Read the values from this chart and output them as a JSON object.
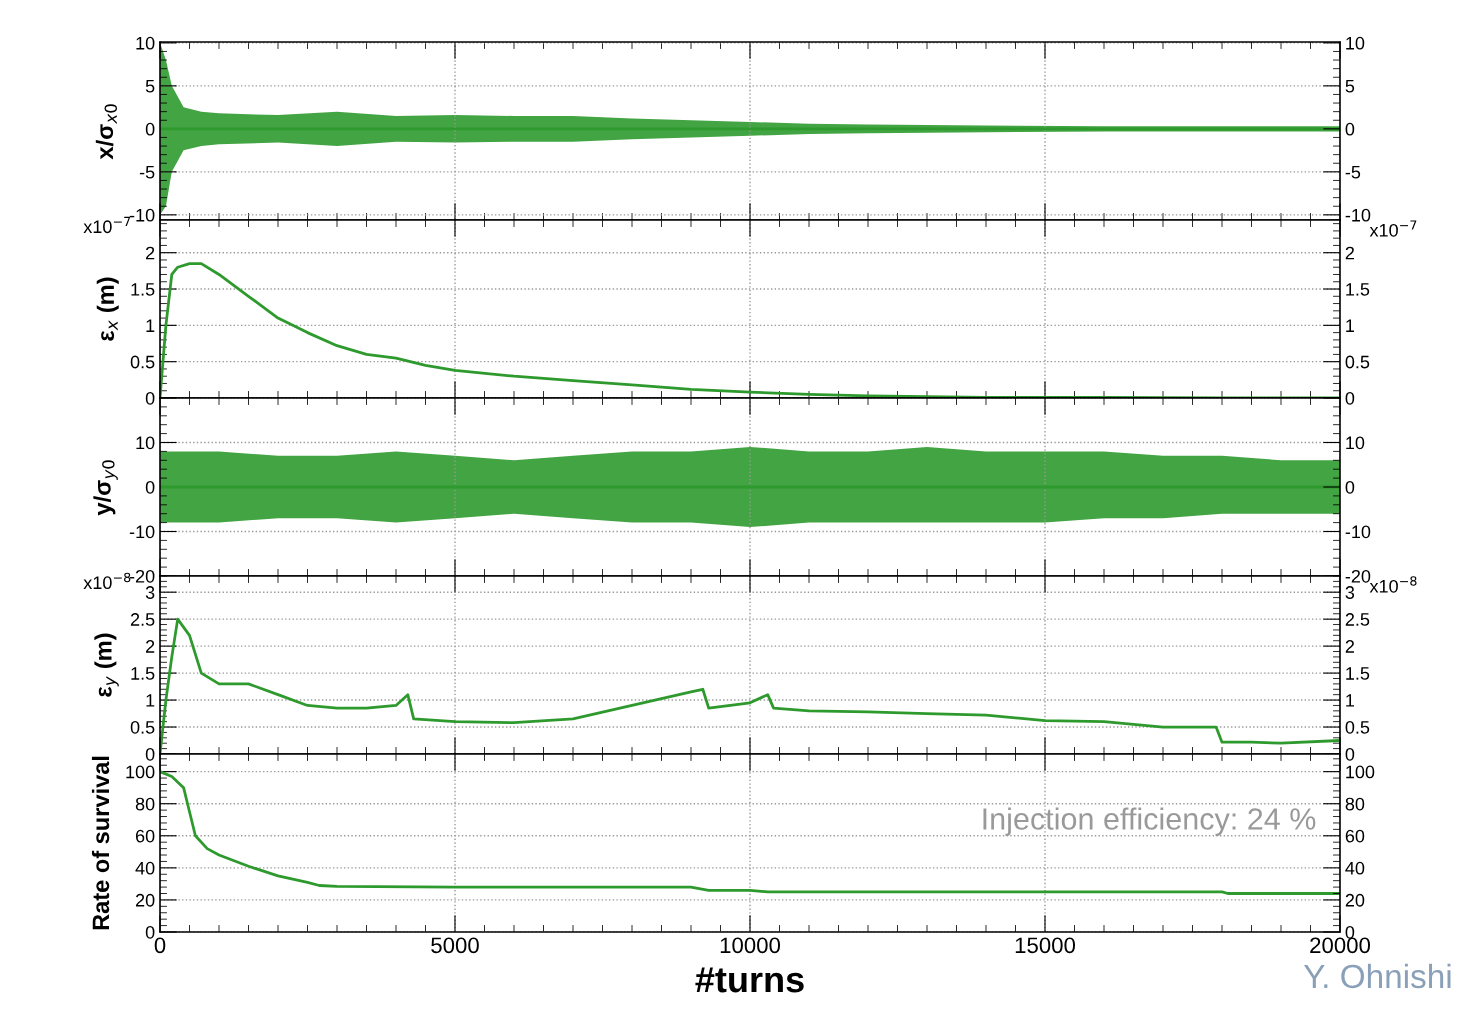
{
  "chart_data": [
    {
      "type": "line",
      "ylabel": "x/σ$_{x0}$",
      "xlim": [
        0,
        20000
      ],
      "xticks": [
        0,
        5000,
        10000,
        15000,
        20000
      ],
      "ylim": [
        -10.6,
        10.1
      ],
      "yticks": [
        -10,
        -5,
        0,
        5,
        10
      ],
      "y2lim": [
        -10.6,
        10.1
      ],
      "y2ticks": [
        -10,
        -5,
        0,
        5,
        10
      ],
      "grid": true,
      "tick_labels": "y",
      "x": [
        0,
        100,
        200,
        400,
        700,
        1000,
        2000,
        3000,
        4000,
        5000,
        6000,
        7000,
        8000,
        9000,
        10000,
        11000,
        12000,
        14000,
        16000,
        18000,
        20000
      ],
      "series": [
        {
          "color": "#2e9a2e",
          "values": [
            0,
            0,
            0,
            0,
            0,
            0,
            0,
            0,
            0,
            0,
            0,
            0,
            0,
            0,
            0,
            0,
            0,
            0,
            0,
            0,
            0
          ],
          "upper": [
            10,
            8,
            5,
            2.5,
            2,
            1.8,
            1.6,
            2,
            1.5,
            1.6,
            1.5,
            1.5,
            1.2,
            1,
            0.8,
            0.6,
            0.5,
            0.4,
            0.3,
            0.3,
            0.3
          ],
          "lower": [
            -10,
            -9,
            -5,
            -2.5,
            -2,
            -1.8,
            -1.6,
            -2,
            -1.5,
            -1.6,
            -1.5,
            -1.5,
            -1.2,
            -1,
            -0.8,
            -0.6,
            -0.5,
            -0.4,
            -0.3,
            -0.3,
            -0.3
          ]
        }
      ]
    },
    {
      "type": "line",
      "ylabel": "ε$_{x}$ (m)",
      "annotations": [
        "x10$^{−7}$",
        "x10$^{−7}$"
      ],
      "xlim": [
        0,
        20000
      ],
      "xticks": [
        0,
        5000,
        10000,
        15000,
        20000
      ],
      "ylim": [
        0,
        2.45
      ],
      "yticks": [
        0,
        0.5,
        1,
        1.5,
        2
      ],
      "y2lim": [
        0,
        2.45
      ],
      "y2ticks": [
        0,
        0.5,
        1,
        1.5,
        2
      ],
      "grid": true,
      "tick_labels": "y",
      "x": [
        0,
        100,
        200,
        300,
        500,
        700,
        1000,
        1500,
        2000,
        2500,
        3000,
        3500,
        4000,
        4500,
        5000,
        6000,
        7000,
        8000,
        9000,
        10000,
        11000,
        12000,
        14000,
        16000,
        18000,
        20000
      ],
      "series": [
        {
          "color": "#2e9a2e",
          "values": [
            0,
            1.0,
            1.7,
            1.8,
            1.85,
            1.85,
            1.7,
            1.4,
            1.1,
            0.9,
            0.72,
            0.6,
            0.55,
            0.45,
            0.38,
            0.3,
            0.24,
            0.18,
            0.12,
            0.08,
            0.05,
            0.03,
            0.01,
            0.01,
            0,
            0
          ]
        }
      ]
    },
    {
      "type": "line",
      "ylabel": "y/σ$_{y0}$",
      "xlim": [
        0,
        20000
      ],
      "xticks": [
        0,
        5000,
        10000,
        15000,
        20000
      ],
      "ylim": [
        -20,
        20
      ],
      "yticks": [
        -20,
        -10,
        0,
        10,
        {
          "value": 20,
          "label": null
        }
      ],
      "y2lim": [
        -20,
        20
      ],
      "y2ticks": [
        -20,
        -10,
        0,
        10,
        {
          "value": 20,
          "label": null
        }
      ],
      "grid": true,
      "tick_labels": "y",
      "x": [
        0,
        1000,
        2000,
        3000,
        4000,
        5000,
        6000,
        7000,
        8000,
        9000,
        10000,
        11000,
        12000,
        13000,
        14000,
        15000,
        16000,
        17000,
        18000,
        19000,
        20000
      ],
      "series": [
        {
          "color": "#2e9a2e",
          "values": [
            0,
            0,
            0,
            0,
            0,
            0,
            0,
            0,
            0,
            0,
            0,
            0,
            0,
            0,
            0,
            0,
            0,
            0,
            0,
            0,
            0
          ],
          "upper": [
            8,
            8,
            7,
            7,
            8,
            7,
            6,
            7,
            8,
            8,
            9,
            8,
            8,
            9,
            8,
            8,
            8,
            7,
            7,
            6,
            6
          ],
          "lower": [
            -8,
            -8,
            -7,
            -7,
            -8,
            -7,
            -6,
            -7,
            -8,
            -8,
            -9,
            -8,
            -8,
            -8,
            -8,
            -8,
            -7,
            -7,
            -6,
            -6,
            -6
          ]
        }
      ]
    },
    {
      "type": "line",
      "ylabel": "ε$_{y}$ (m)",
      "annotations": [
        "x10$^{−8}$",
        "x10$^{−8}$"
      ],
      "xlim": [
        0,
        20000
      ],
      "xticks": [
        0,
        5000,
        10000,
        15000,
        20000
      ],
      "ylim": [
        0,
        3.3
      ],
      "yticks": [
        0,
        0.5,
        1,
        1.5,
        2,
        2.5,
        3
      ],
      "y2lim": [
        0,
        3.3
      ],
      "y2ticks": [
        0,
        0.5,
        1,
        1.5,
        2,
        2.5,
        3
      ],
      "grid": true,
      "tick_labels": "y",
      "x": [
        0,
        100,
        200,
        300,
        500,
        700,
        1000,
        1500,
        2000,
        2500,
        3000,
        3500,
        4000,
        4200,
        4300,
        5000,
        6000,
        7000,
        8000,
        9000,
        9200,
        9300,
        10000,
        10300,
        10400,
        11000,
        12000,
        13000,
        14000,
        15000,
        16000,
        17000,
        17900,
        18000,
        18500,
        19000,
        20000
      ],
      "series": [
        {
          "color": "#2e9a2e",
          "values": [
            0,
            1.0,
            1.8,
            2.5,
            2.2,
            1.5,
            1.3,
            1.3,
            1.1,
            0.9,
            0.85,
            0.85,
            0.9,
            1.1,
            0.65,
            0.6,
            0.58,
            0.65,
            0.9,
            1.15,
            1.2,
            0.85,
            0.95,
            1.1,
            0.85,
            0.8,
            0.78,
            0.75,
            0.72,
            0.62,
            0.6,
            0.5,
            0.5,
            0.22,
            0.22,
            0.2,
            0.25
          ]
        }
      ]
    },
    {
      "type": "line",
      "ylabel": "Rate of survival",
      "xlabel": "#turns",
      "annotations": [
        "Injection efficiency: 24 %",
        "Y. Ohnishi"
      ],
      "xlim": [
        0,
        20000
      ],
      "xticks": [
        0,
        5000,
        10000,
        15000,
        20000
      ],
      "ylim": [
        0,
        111
      ],
      "yticks": [
        0,
        20,
        40,
        60,
        80,
        100
      ],
      "y2lim": [
        0,
        111
      ],
      "y2ticks": [
        0,
        20,
        40,
        60,
        80,
        100
      ],
      "grid": true,
      "x": [
        0,
        200,
        400,
        500,
        600,
        800,
        1000,
        1500,
        2000,
        2500,
        2700,
        3000,
        5000,
        9000,
        9300,
        10000,
        10300,
        12000,
        18000,
        18100,
        20000
      ],
      "series": [
        {
          "color": "#2e9a2e",
          "values": [
            100,
            97,
            90,
            75,
            60,
            52,
            48,
            41,
            35,
            31,
            29,
            28.5,
            28,
            28,
            26,
            26,
            25,
            25,
            25,
            24,
            24
          ]
        }
      ]
    }
  ]
}
